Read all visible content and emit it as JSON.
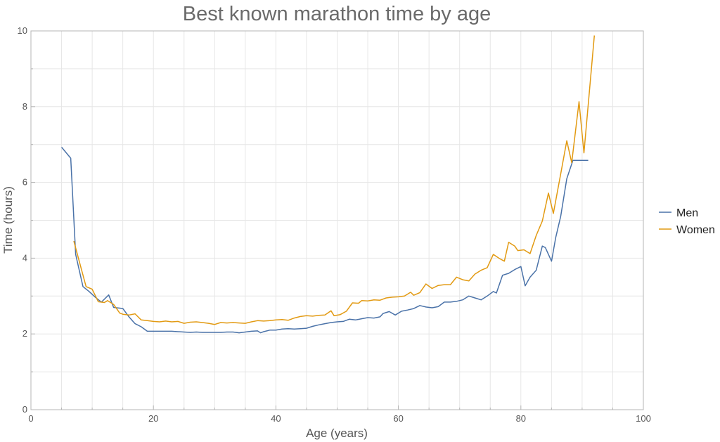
{
  "chart_data": {
    "type": "line",
    "title": "Best known marathon time by age",
    "xlabel": "Age (years)",
    "ylabel": "Time (hours)",
    "xlim": [
      0,
      100
    ],
    "ylim": [
      0,
      10
    ],
    "x_ticks": [
      0,
      20,
      40,
      60,
      80,
      100
    ],
    "y_ticks": [
      0,
      2,
      4,
      6,
      8,
      10
    ],
    "grid": true,
    "legend_position": "right",
    "series": [
      {
        "name": "Men",
        "color": "#4a72a8",
        "points": [
          [
            5,
            6.93
          ],
          [
            6.5,
            6.64
          ],
          [
            7.3,
            4.1
          ],
          [
            8.5,
            3.25
          ],
          [
            9.5,
            3.12
          ],
          [
            10.5,
            2.97
          ],
          [
            11.5,
            2.84
          ],
          [
            12.7,
            3.03
          ],
          [
            13.5,
            2.7
          ],
          [
            14.5,
            2.68
          ],
          [
            15,
            2.67
          ],
          [
            16,
            2.45
          ],
          [
            17,
            2.27
          ],
          [
            18,
            2.19
          ],
          [
            19,
            2.07
          ],
          [
            20,
            2.07
          ],
          [
            21,
            2.07
          ],
          [
            22,
            2.07
          ],
          [
            23,
            2.07
          ],
          [
            24,
            2.06
          ],
          [
            25,
            2.05
          ],
          [
            26,
            2.04
          ],
          [
            27,
            2.05
          ],
          [
            28,
            2.04
          ],
          [
            29,
            2.04
          ],
          [
            30,
            2.04
          ],
          [
            31,
            2.04
          ],
          [
            32,
            2.05
          ],
          [
            33,
            2.05
          ],
          [
            34,
            2.03
          ],
          [
            35,
            2.05
          ],
          [
            36,
            2.07
          ],
          [
            37,
            2.08
          ],
          [
            37.5,
            2.03
          ],
          [
            38,
            2.06
          ],
          [
            39,
            2.1
          ],
          [
            40,
            2.1
          ],
          [
            41,
            2.13
          ],
          [
            42,
            2.14
          ],
          [
            43,
            2.13
          ],
          [
            44,
            2.14
          ],
          [
            45,
            2.15
          ],
          [
            46,
            2.2
          ],
          [
            47,
            2.24
          ],
          [
            48,
            2.27
          ],
          [
            49,
            2.3
          ],
          [
            50,
            2.32
          ],
          [
            51,
            2.33
          ],
          [
            52,
            2.39
          ],
          [
            53,
            2.37
          ],
          [
            54,
            2.4
          ],
          [
            55,
            2.43
          ],
          [
            56,
            2.42
          ],
          [
            57,
            2.45
          ],
          [
            57.5,
            2.54
          ],
          [
            58.5,
            2.59
          ],
          [
            59.5,
            2.5
          ],
          [
            60.5,
            2.6
          ],
          [
            61.5,
            2.63
          ],
          [
            62.5,
            2.67
          ],
          [
            63.5,
            2.75
          ],
          [
            64.5,
            2.71
          ],
          [
            65.5,
            2.69
          ],
          [
            66.5,
            2.72
          ],
          [
            67.5,
            2.84
          ],
          [
            68.5,
            2.84
          ],
          [
            69.5,
            2.86
          ],
          [
            70.5,
            2.9
          ],
          [
            71.5,
            3.0
          ],
          [
            72.5,
            2.95
          ],
          [
            73.5,
            2.9
          ],
          [
            74.5,
            3.0
          ],
          [
            75.5,
            3.12
          ],
          [
            76,
            3.08
          ],
          [
            77,
            3.55
          ],
          [
            78,
            3.6
          ],
          [
            79,
            3.7
          ],
          [
            80,
            3.78
          ],
          [
            80.7,
            3.27
          ],
          [
            81.5,
            3.5
          ],
          [
            82.5,
            3.68
          ],
          [
            83.5,
            4.32
          ],
          [
            84,
            4.28
          ],
          [
            85,
            3.92
          ],
          [
            85.7,
            4.55
          ],
          [
            86.5,
            5.1
          ],
          [
            87.5,
            6.1
          ],
          [
            88.5,
            6.58
          ],
          [
            90,
            6.58
          ],
          [
            91,
            6.58
          ]
        ]
      },
      {
        "name": "Women",
        "color": "#e29a12",
        "points": [
          [
            7,
            4.45
          ],
          [
            8,
            3.85
          ],
          [
            9,
            3.25
          ],
          [
            10,
            3.18
          ],
          [
            11,
            2.85
          ],
          [
            12,
            2.83
          ],
          [
            12.5,
            2.88
          ],
          [
            13.5,
            2.78
          ],
          [
            14.5,
            2.55
          ],
          [
            15,
            2.52
          ],
          [
            16,
            2.5
          ],
          [
            17,
            2.53
          ],
          [
            18,
            2.37
          ],
          [
            19,
            2.35
          ],
          [
            20,
            2.33
          ],
          [
            21,
            2.32
          ],
          [
            22,
            2.34
          ],
          [
            23,
            2.32
          ],
          [
            24,
            2.33
          ],
          [
            25,
            2.28
          ],
          [
            26,
            2.31
          ],
          [
            27,
            2.32
          ],
          [
            28,
            2.3
          ],
          [
            29,
            2.28
          ],
          [
            30,
            2.25
          ],
          [
            31,
            2.3
          ],
          [
            32,
            2.29
          ],
          [
            33,
            2.3
          ],
          [
            34,
            2.29
          ],
          [
            35,
            2.28
          ],
          [
            36,
            2.32
          ],
          [
            37,
            2.35
          ],
          [
            38,
            2.34
          ],
          [
            39,
            2.35
          ],
          [
            40,
            2.37
          ],
          [
            41,
            2.38
          ],
          [
            42,
            2.36
          ],
          [
            43,
            2.42
          ],
          [
            44,
            2.46
          ],
          [
            45,
            2.48
          ],
          [
            46,
            2.47
          ],
          [
            47,
            2.49
          ],
          [
            48,
            2.5
          ],
          [
            49,
            2.61
          ],
          [
            49.5,
            2.48
          ],
          [
            50.5,
            2.51
          ],
          [
            51.5,
            2.6
          ],
          [
            52.5,
            2.82
          ],
          [
            53.5,
            2.81
          ],
          [
            54,
            2.88
          ],
          [
            55,
            2.87
          ],
          [
            56,
            2.9
          ],
          [
            57,
            2.89
          ],
          [
            58,
            2.95
          ],
          [
            59,
            2.97
          ],
          [
            60,
            2.98
          ],
          [
            61,
            3.0
          ],
          [
            62,
            3.1
          ],
          [
            62.5,
            3.02
          ],
          [
            63.5,
            3.09
          ],
          [
            64.5,
            3.32
          ],
          [
            65.5,
            3.2
          ],
          [
            66.5,
            3.28
          ],
          [
            67.5,
            3.3
          ],
          [
            68.5,
            3.3
          ],
          [
            69.5,
            3.5
          ],
          [
            70.5,
            3.43
          ],
          [
            71.5,
            3.4
          ],
          [
            72.5,
            3.58
          ],
          [
            73.5,
            3.68
          ],
          [
            74.5,
            3.75
          ],
          [
            75.5,
            4.1
          ],
          [
            76.5,
            3.99
          ],
          [
            77.3,
            3.92
          ],
          [
            78,
            4.42
          ],
          [
            79,
            4.32
          ],
          [
            79.5,
            4.2
          ],
          [
            80.5,
            4.22
          ],
          [
            81.5,
            4.12
          ],
          [
            82.5,
            4.6
          ],
          [
            83.5,
            4.98
          ],
          [
            84.5,
            5.72
          ],
          [
            85.3,
            5.18
          ],
          [
            86.5,
            6.22
          ],
          [
            87.5,
            7.1
          ],
          [
            88.3,
            6.52
          ],
          [
            89.5,
            8.13
          ],
          [
            90.3,
            6.78
          ],
          [
            92,
            9.88
          ]
        ]
      }
    ]
  }
}
